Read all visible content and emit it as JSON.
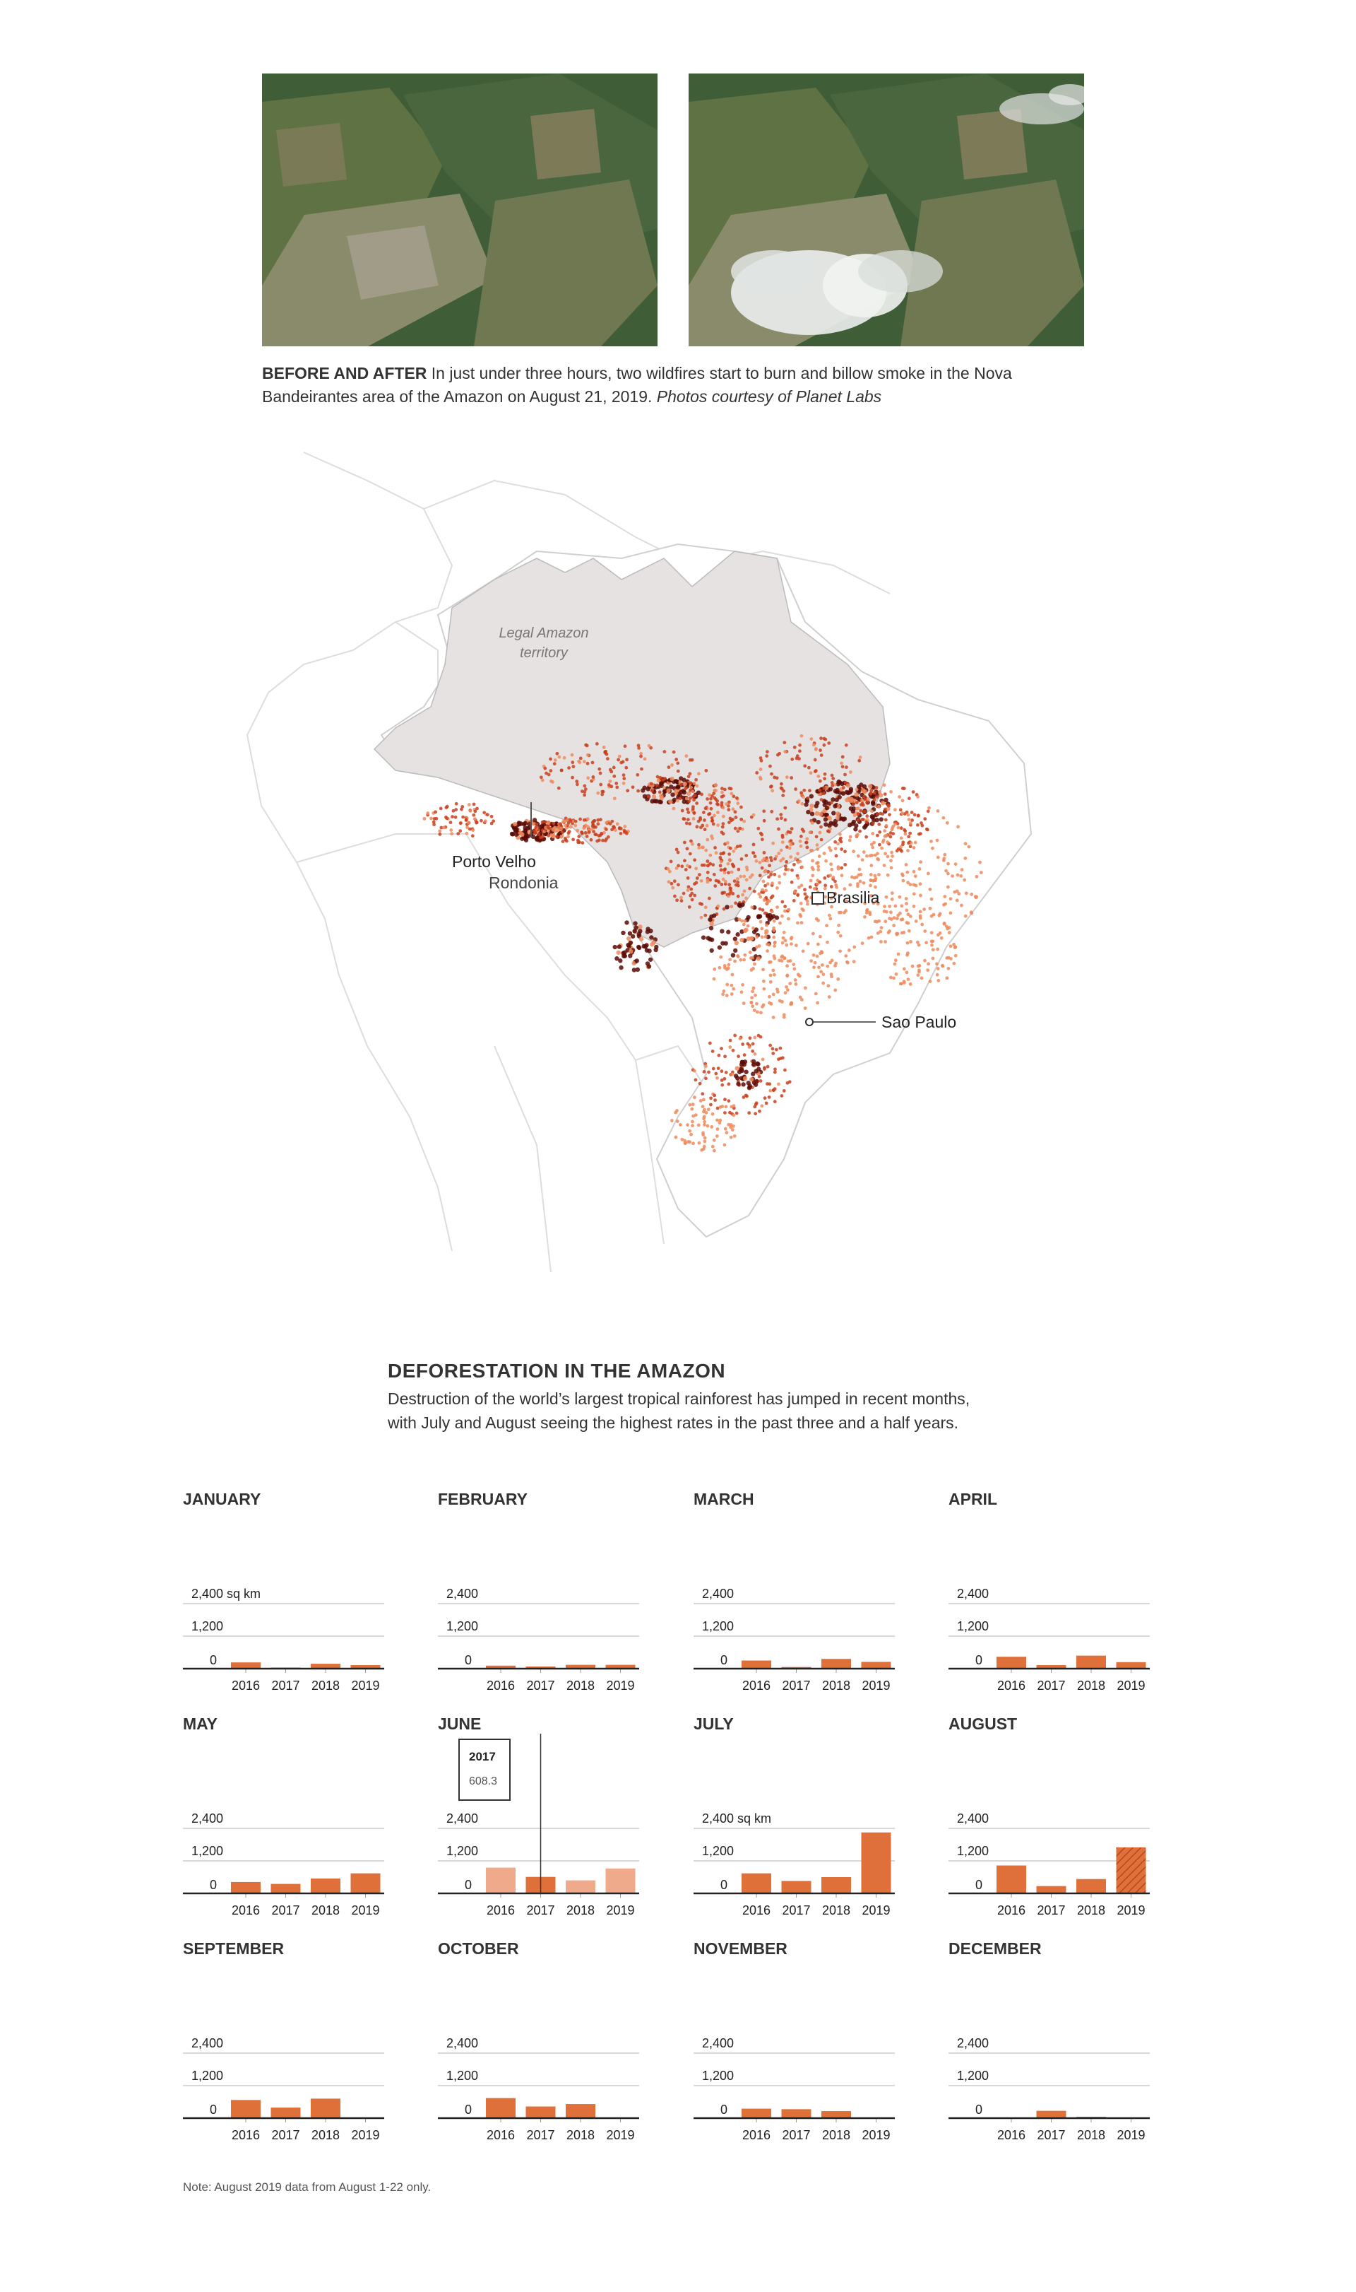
{
  "photos": {
    "before_label": "satellite-before",
    "after_label": "satellite-after",
    "caption_bold": "BEFORE AND AFTER",
    "caption_text": " In just under three hours, two wildfires start to burn and billow smoke in the Nova Bandeirantes area of the Amazon on August 21, 2019. ",
    "caption_italic": "Photos courtesy of Planet Labs"
  },
  "map": {
    "amazon_label_line1": "Legal Amazon",
    "amazon_label_line2": "territory",
    "porto_velho": "Porto Velho",
    "rondonia": "Rondonia",
    "brasilia": "Brasilia",
    "sao_paulo": "Sao Paulo",
    "colors": {
      "amazon_fill": "#e6e2e1",
      "dot_light": "#ef8a5c",
      "dot_mid": "#c9401d",
      "dot_dark": "#5c0a05"
    }
  },
  "section": {
    "title": "DEFORESTATION IN THE AMAZON",
    "description": "Destruction of the world’s largest tropical rainforest has jumped in recent months, with July and August seeing the highest rates in the past three and a half years."
  },
  "chart_data": {
    "type": "bar",
    "unit": "sq km",
    "ylim": [
      0,
      2400
    ],
    "yticks": [
      "0",
      "1,200",
      "2,400"
    ],
    "categories": [
      "2016",
      "2017",
      "2018",
      "2019"
    ],
    "colors": {
      "bar": "#e0703a",
      "bar_faded": "#eeaa8a",
      "partial_hatch": "#b8471f",
      "grid": "#cccccc",
      "axis": "#222222"
    },
    "tooltip": {
      "month": "JUNE",
      "year": "2017",
      "value": "608.3"
    },
    "months": [
      {
        "name": "JANUARY",
        "top_label": "2,400 sq km",
        "values": [
          230,
          40,
          180,
          130
        ]
      },
      {
        "name": "FEBRUARY",
        "top_label": "2,400",
        "values": [
          110,
          80,
          140,
          140
        ]
      },
      {
        "name": "MARCH",
        "top_label": "2,400",
        "values": [
          300,
          60,
          360,
          250
        ]
      },
      {
        "name": "APRIL",
        "top_label": "2,400",
        "values": [
          440,
          130,
          480,
          240
        ]
      },
      {
        "name": "MAY",
        "top_label": "2,400",
        "values": [
          420,
          350,
          550,
          740
        ]
      },
      {
        "name": "JUNE",
        "top_label": "2,400",
        "values": [
          950,
          608.3,
          480,
          920
        ]
      },
      {
        "name": "JULY",
        "top_label": "2,400 sq km",
        "values": [
          740,
          460,
          600,
          2250
        ]
      },
      {
        "name": "AUGUST",
        "top_label": "2,400",
        "values": [
          1030,
          270,
          530,
          1700
        ],
        "partial": 3
      },
      {
        "name": "SEPTEMBER",
        "top_label": "2,400",
        "values": [
          670,
          390,
          720,
          null
        ]
      },
      {
        "name": "OCTOBER",
        "top_label": "2,400",
        "values": [
          740,
          430,
          520,
          null
        ]
      },
      {
        "name": "NOVEMBER",
        "top_label": "2,400",
        "values": [
          350,
          330,
          260,
          null
        ]
      },
      {
        "name": "DECEMBER",
        "top_label": "2,400",
        "values": [
          null,
          270,
          50,
          null
        ]
      }
    ]
  },
  "note": "Note: August 2019 data from August 1-22 only."
}
